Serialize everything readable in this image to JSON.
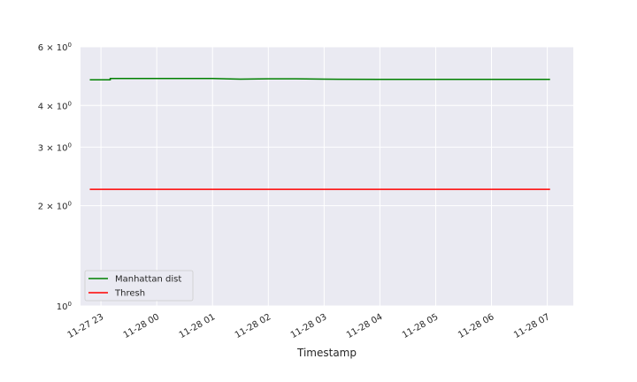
{
  "chart_data": {
    "type": "line",
    "title": "",
    "xlabel": "Timestamp",
    "ylabel": "",
    "yscale": "log",
    "grid": true,
    "legend_position": "lower-left",
    "colors": {
      "background": "#eaeaf2",
      "grid": "#ffffff",
      "manhattan": "#008000",
      "thresh": "#ff0000"
    },
    "x_tick_labels": [
      "11-27 23",
      "11-28 00",
      "11-28 01",
      "11-28 02",
      "11-28 03",
      "11-28 04",
      "11-28 05",
      "11-28 06",
      "11-28 07"
    ],
    "x_ticks": [
      "2023-11-27 23:00",
      "2023-11-28 00:00",
      "2023-11-28 01:00",
      "2023-11-28 02:00",
      "2023-11-28 03:00",
      "2023-11-28 04:00",
      "2023-11-28 05:00",
      "2023-11-28 06:00",
      "2023-11-28 07:00"
    ],
    "xlim": [
      "2023-11-27 22:38",
      "2023-11-28 07:28"
    ],
    "y_ticks": [
      1,
      2,
      3,
      4,
      6
    ],
    "y_tick_base": [
      "10",
      "2 × 10",
      "3 × 10",
      "4 × 10",
      "6 × 10"
    ],
    "y_tick_exp": [
      "0",
      "0",
      "0",
      "0",
      "0"
    ],
    "ylim": [
      1,
      6
    ],
    "series": [
      {
        "name": "Manhattan dist",
        "color": "#008000",
        "x": [
          "2023-11-27 22:48",
          "2023-11-27 23:10",
          "2023-11-27 23:10",
          "2023-11-28 00:00",
          "2023-11-28 01:00",
          "2023-11-28 01:30",
          "2023-11-28 02:00",
          "2023-11-28 02:30",
          "2023-11-28 03:00",
          "2023-11-28 04:00",
          "2023-11-28 05:00",
          "2023-11-28 06:00",
          "2023-11-28 07:03"
        ],
        "y": [
          4.78,
          4.78,
          4.82,
          4.82,
          4.82,
          4.8,
          4.81,
          4.81,
          4.8,
          4.79,
          4.79,
          4.79,
          4.79
        ]
      },
      {
        "name": "Thresh",
        "color": "#ff0000",
        "x": [
          "2023-11-27 22:48",
          "2023-11-28 07:03"
        ],
        "y": [
          2.24,
          2.24
        ]
      }
    ]
  }
}
